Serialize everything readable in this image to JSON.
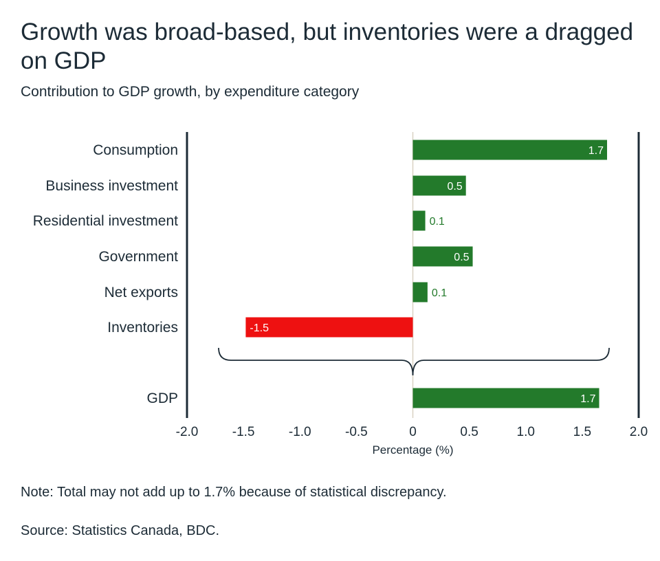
{
  "header": {
    "title": "Growth was broad-based, but inventories were a dragged on GDP",
    "subtitle": "Contribution to GDP growth, by expenditure category"
  },
  "footer": {
    "note": "Note: Total may not add up to 1.7% because of statistical discrepancy.",
    "source": "Source: Statistics Canada, BDC."
  },
  "colors": {
    "positive": "#237a2b",
    "negative": "#ee1111",
    "axis": "#1c2b36",
    "zero_line": "#d9d2c3",
    "text": "#1c2b36"
  },
  "chart_data": {
    "type": "bar",
    "orientation": "horizontal",
    "title": "Growth was broad-based, but inventories were a dragged on GDP",
    "subtitle": "Contribution to GDP growth, by expenditure category",
    "xlabel": "Percentage (%)",
    "ylabel": "",
    "xlim": [
      -2.0,
      2.0
    ],
    "x_ticks": [
      "-2.0",
      "-1.5",
      "-1.0",
      "-0.5",
      "0",
      "0.5",
      "1.0",
      "1.5",
      "2.0"
    ],
    "categories": [
      "Consumption",
      "Business investment",
      "Residential investment",
      "Government",
      "Net exports",
      "Inventories",
      "GDP"
    ],
    "values": [
      1.72,
      0.47,
      0.11,
      0.53,
      0.13,
      -1.48,
      1.65
    ],
    "data_labels": [
      "1.7",
      "0.5",
      "0.1",
      "0.5",
      "0.1",
      "-1.5",
      "1.7"
    ],
    "grid": false,
    "legend": "none",
    "annotation": "brace grouping the components into GDP"
  }
}
